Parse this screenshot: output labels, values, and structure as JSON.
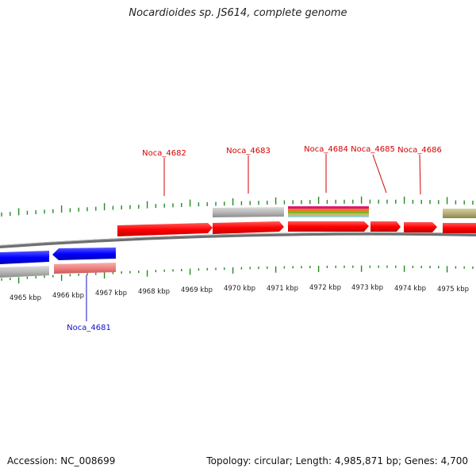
{
  "title": "Nocardioides sp. JS614, complete genome",
  "footer": {
    "accession": "Accession: NC_008699",
    "topology": "Topology: circular; Length: 4,985,871 bp; Genes: 4,700"
  },
  "scale": {
    "ticks": [
      "4965 kbp",
      "4966 kbp",
      "4967 kbp",
      "4968 kbp",
      "4969 kbp",
      "4970 kbp",
      "4971 kbp",
      "4972 kbp",
      "4973 kbp",
      "4974 kbp",
      "4975 kbp"
    ]
  },
  "gene_labels": {
    "forward": [
      "Noca_4682",
      "Noca_4683",
      "Noca_4684",
      "Noca_4685",
      "Noca_4686"
    ],
    "reverse": [
      "Noca_4681"
    ]
  },
  "colors": {
    "forward_cds": "#ff0000",
    "reverse_cds": "#0000ff",
    "reverse_rna": "#f08080",
    "gene_gray": "#b8b8b8",
    "olive": "#b5ae78",
    "tick_green": "#228b22",
    "label_red": "#d40000",
    "label_blue": "#1010c8"
  }
}
